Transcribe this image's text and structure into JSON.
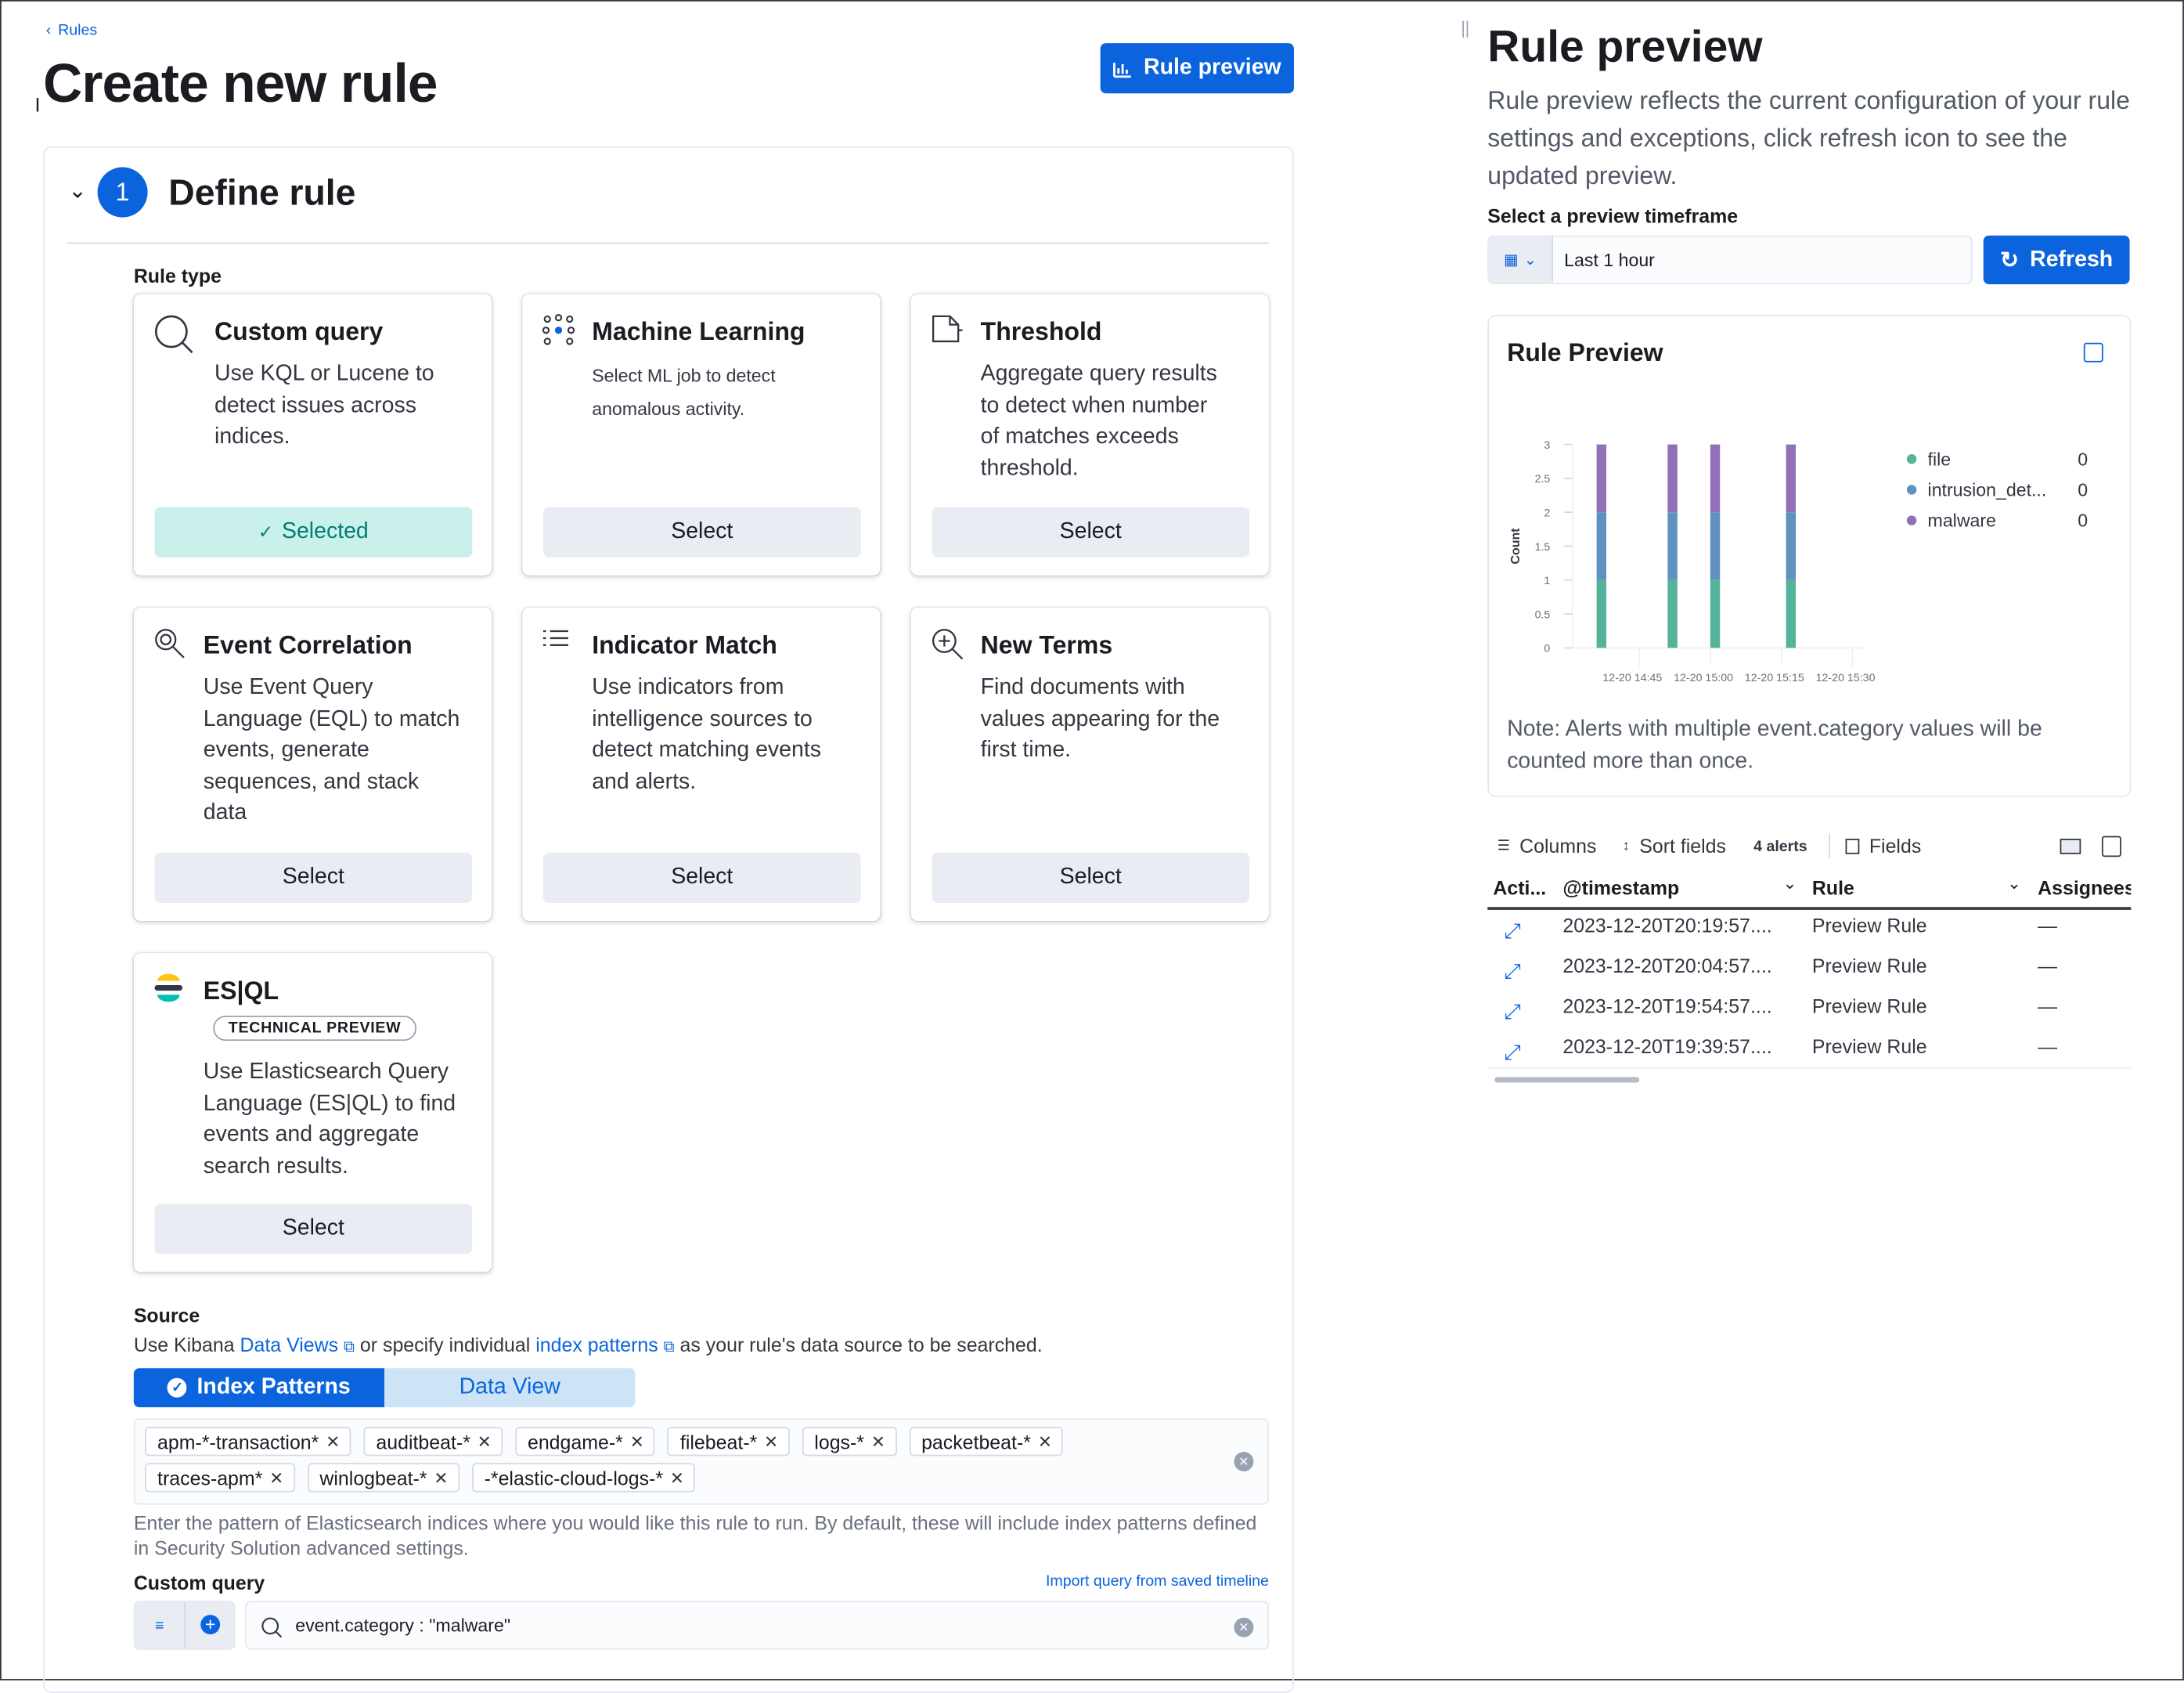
{
  "breadcrumb": {
    "back_label": "Rules"
  },
  "page_title": "Create new rule",
  "rule_preview_button": "Rule preview",
  "step": {
    "number": "1",
    "title": "Define rule"
  },
  "rule_type": {
    "label": "Rule type",
    "cards": [
      {
        "title": "Custom query",
        "icon": "search-icon",
        "description": [
          "Use KQL or Lucene to",
          "detect issues across",
          "indices."
        ],
        "button": "Selected",
        "selected": true
      },
      {
        "title": "Machine Learning",
        "icon": "machine-learning-icon",
        "description": [
          "Select ML job to detect",
          "anomalous activity."
        ],
        "button": "Select",
        "selected": false
      },
      {
        "title": "Threshold",
        "icon": "threshold-icon",
        "description": [
          "Aggregate query results",
          "to detect when number",
          "of matches exceeds",
          "threshold."
        ],
        "button": "Select",
        "selected": false
      },
      {
        "title": "Event Correlation",
        "icon": "eql-icon",
        "description": [
          "Use Event Query",
          "Language (EQL) to match",
          "events, generate",
          "sequences, and stack",
          "data"
        ],
        "button": "Select",
        "selected": false
      },
      {
        "title": "Indicator Match",
        "icon": "list-icon",
        "description": [
          "Use indicators from",
          "intelligence sources to",
          "detect matching events",
          "and alerts."
        ],
        "button": "Select",
        "selected": false
      },
      {
        "title": "New Terms",
        "icon": "zoom-in-icon",
        "description": [
          "Find documents with",
          "values appearing for the",
          "first time."
        ],
        "button": "Select",
        "selected": false
      },
      {
        "title": "ES|QL",
        "icon": "esql-logo-icon",
        "badge": "TECHNICAL PREVIEW",
        "description": [
          "Use Elasticsearch Query",
          "Language (ES|QL) to find",
          "events and aggregate",
          "search results."
        ],
        "button": "Select",
        "selected": false
      }
    ]
  },
  "source": {
    "label": "Source",
    "desc_prefix": "Use Kibana ",
    "data_views_link": "Data Views",
    "desc_middle": " or specify individual ",
    "index_patterns_link": "index patterns",
    "desc_suffix": " as your rule's data source to be searched.",
    "tabs": [
      {
        "label": "Index Patterns",
        "active": true
      },
      {
        "label": "Data View",
        "active": false
      }
    ],
    "index_patterns": [
      "apm-*-transaction*",
      "auditbeat-*",
      "endgame-*",
      "filebeat-*",
      "logs-*",
      "packetbeat-*",
      "traces-apm*",
      "winlogbeat-*",
      "-*elastic-cloud-logs-*"
    ],
    "help": "Enter the pattern of Elasticsearch indices where you would like this rule to run. By default, these will include index patterns defined in Security Solution advanced settings."
  },
  "custom_query": {
    "label": "Custom query",
    "import_link": "Import query from saved timeline",
    "value": "event.category : \"malware\""
  },
  "preview": {
    "title": "Rule preview",
    "description": "Rule preview reflects the current configuration of your rule settings and exceptions, click refresh icon to see the updated preview.",
    "timeframe_label": "Select a preview timeframe",
    "timeframe_value": "Last 1 hour",
    "refresh_label": "Refresh",
    "chart_title": "Rule Preview",
    "note": "Note: Alerts with multiple event.category values will be counted more than once."
  },
  "chart_data": {
    "type": "bar",
    "stacked": true,
    "ylabel": "Count",
    "ylim": [
      0,
      3
    ],
    "yticks": [
      "0",
      "0.5",
      "1",
      "1.5",
      "2",
      "2.5",
      "3"
    ],
    "xticks": [
      "12-20 14:45",
      "12-20 15:00",
      "12-20 15:15",
      "12-20 15:30"
    ],
    "x": [
      "12-20 14:37",
      "12-20 14:52",
      "12-20 15:01",
      "12-20 15:17"
    ],
    "series": [
      {
        "name": "file",
        "values": [
          1,
          1,
          1,
          1
        ],
        "color": "#54b399",
        "legend_value": "0"
      },
      {
        "name": "intrusion_det...",
        "values": [
          1,
          1,
          1,
          1
        ],
        "color": "#6092c0",
        "legend_value": "0"
      },
      {
        "name": "malware",
        "values": [
          1,
          1,
          1,
          1
        ],
        "color": "#9170b8",
        "legend_value": "0"
      }
    ],
    "legend": "right"
  },
  "table": {
    "toolbar": {
      "columns": "Columns",
      "sort": "Sort fields",
      "count": "4 alerts",
      "fields": "Fields"
    },
    "headers": [
      "Acti...",
      "@timestamp",
      "Rule",
      "Assignees"
    ],
    "rows": [
      {
        "timestamp": "2023-12-20T20:19:57....",
        "rule": "Preview Rule",
        "assignees": "—"
      },
      {
        "timestamp": "2023-12-20T20:04:57....",
        "rule": "Preview Rule",
        "assignees": "—"
      },
      {
        "timestamp": "2023-12-20T19:54:57....",
        "rule": "Preview Rule",
        "assignees": "—"
      },
      {
        "timestamp": "2023-12-20T19:39:57....",
        "rule": "Preview Rule",
        "assignees": "—"
      }
    ]
  },
  "colors": {
    "primary": "#0b64dd",
    "selected_bg": "#c9f0ea",
    "selected_text": "#017d73"
  }
}
